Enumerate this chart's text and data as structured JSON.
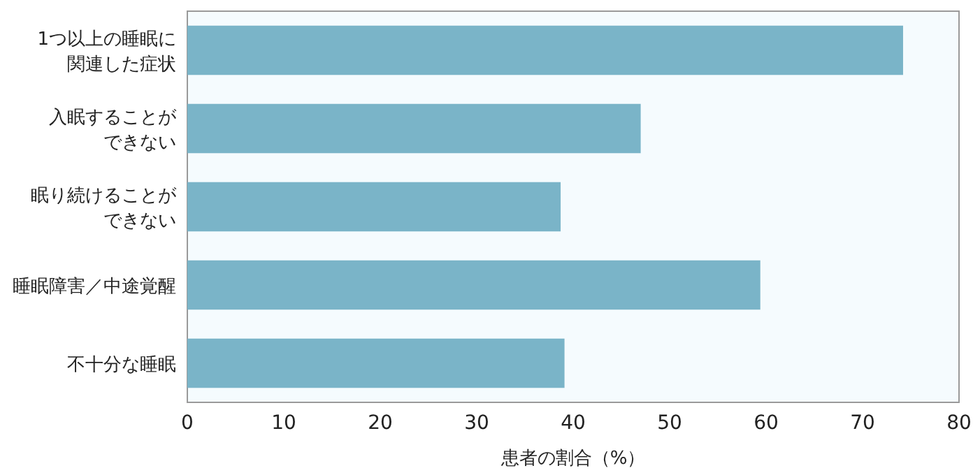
{
  "chart_data": {
    "type": "bar",
    "orientation": "horizontal",
    "xlabel": "患者の割合（%）",
    "categories": [
      "1つ以上の睡眠に関連した症状",
      "入眠することができない",
      "眠り続けることができない",
      "睡眠障害／中途覚醒",
      "不十分な睡眠"
    ],
    "values": [
      74.2,
      47.0,
      38.7,
      59.4,
      39.1
    ],
    "color": "#7ab4c8",
    "xlim": [
      0,
      80
    ],
    "xticks": [
      0,
      10,
      20,
      30,
      40,
      50,
      60,
      70,
      80
    ],
    "grid": false,
    "legend": false
  }
}
